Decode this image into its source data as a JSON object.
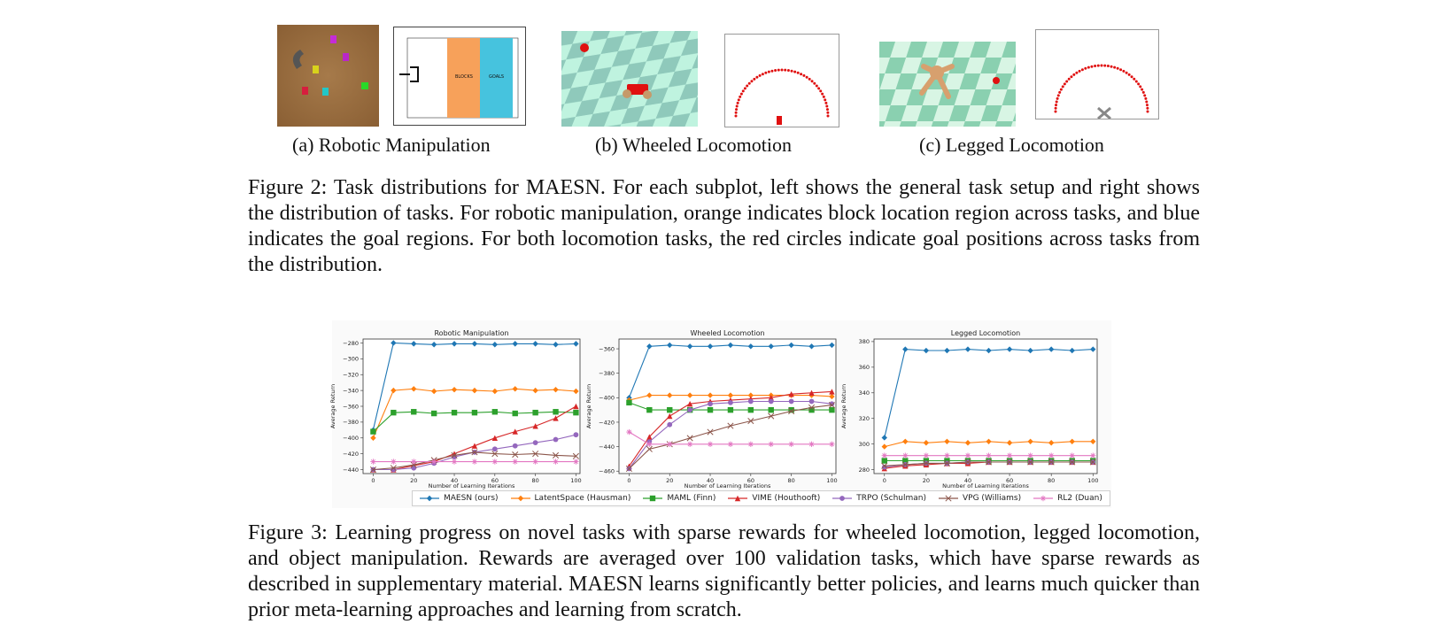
{
  "figure2": {
    "panels": [
      {
        "caption": "(a) Robotic Manipulation",
        "zone_labels": [
          "BLOCKS",
          "GOALS"
        ]
      },
      {
        "caption": "(b) Wheeled Locomotion"
      },
      {
        "caption": "(c) Legged Locomotion"
      }
    ],
    "caption": "Figure 2: Task distributions for MAESN. For each subplot, left shows the general task setup and right shows the distribution of tasks. For robotic manipulation, orange indicates block location region across tasks, and blue indicates the goal regions. For both locomotion tasks, the red circles indicate goal positions across tasks from the distribution."
  },
  "figure3": {
    "caption": "Figure 3: Learning progress on novel tasks with sparse rewards for wheeled locomotion, legged locomotion, and object manipulation. Rewards are averaged over 100 validation tasks, which have sparse rewards as described in supplementary material. MAESN learns significantly better policies, and learns much quicker than prior meta-learning approaches and learning from scratch.",
    "legend": [
      {
        "label": "MAESN (ours)",
        "color": "#1f77b4",
        "marker": "diamond"
      },
      {
        "label": "LatentSpace (Hausman)",
        "color": "#ff7f0e",
        "marker": "diamond"
      },
      {
        "label": "MAML (Finn)",
        "color": "#2ca02c",
        "marker": "square"
      },
      {
        "label": "VIME (Houthooft)",
        "color": "#d62728",
        "marker": "triangle"
      },
      {
        "label": "TRPO (Schulman)",
        "color": "#9467bd",
        "marker": "circle"
      },
      {
        "label": "VPG (Williams)",
        "color": "#8c564b",
        "marker": "x"
      },
      {
        "label": "RL2 (Duan)",
        "color": "#e377c2",
        "marker": "star"
      }
    ]
  },
  "chart_data": [
    {
      "type": "line",
      "title": "Robotic Manipulation",
      "xlabel": "Number of Learning Iterations",
      "ylabel": "Average Return",
      "xlim": [
        -5,
        102
      ],
      "ylim": [
        -445,
        -275
      ],
      "xticks": [
        0,
        20,
        40,
        60,
        80,
        100
      ],
      "yticks": [
        -280,
        -300,
        -320,
        -340,
        -360,
        -380,
        -400,
        -420,
        -440
      ],
      "x": [
        0,
        10,
        20,
        30,
        40,
        50,
        60,
        70,
        80,
        90,
        100
      ],
      "series": [
        {
          "name": "MAESN (ours)",
          "values": [
            -390,
            -280,
            -281,
            -282,
            -281,
            -281,
            -282,
            -281,
            -281,
            -282,
            -281
          ]
        },
        {
          "name": "LatentSpace (Hausman)",
          "values": [
            -400,
            -340,
            -338,
            -341,
            -339,
            -340,
            -341,
            -338,
            -340,
            -339,
            -341
          ]
        },
        {
          "name": "MAML (Finn)",
          "values": [
            -392,
            -368,
            -367,
            -369,
            -368,
            -368,
            -367,
            -369,
            -368,
            -367,
            -368
          ]
        },
        {
          "name": "VIME (Houthooft)",
          "values": [
            -440,
            -440,
            -435,
            -430,
            -420,
            -410,
            -400,
            -392,
            -385,
            -375,
            -360
          ]
        },
        {
          "name": "TRPO (Schulman)",
          "values": [
            -440,
            -440,
            -438,
            -432,
            -424,
            -418,
            -414,
            -410,
            -406,
            -402,
            -396
          ]
        },
        {
          "name": "VPG (Williams)",
          "values": [
            -440,
            -438,
            -434,
            -428,
            -422,
            -418,
            -420,
            -421,
            -420,
            -422,
            -423
          ]
        },
        {
          "name": "RL2 (Duan)",
          "values": [
            -430,
            -430,
            -430,
            -430,
            -430,
            -430,
            -430,
            -430,
            -430,
            -430,
            -430
          ]
        }
      ]
    },
    {
      "type": "line",
      "title": "Wheeled Locomotion",
      "xlabel": "Number of Learning Iterations",
      "ylabel": "Average Return",
      "xlim": [
        -5,
        102
      ],
      "ylim": [
        -462,
        -352
      ],
      "xticks": [
        0,
        20,
        40,
        60,
        80,
        100
      ],
      "yticks": [
        -360,
        -380,
        -400,
        -420,
        -440,
        -460
      ],
      "x": [
        0,
        10,
        20,
        30,
        40,
        50,
        60,
        70,
        80,
        90,
        100
      ],
      "series": [
        {
          "name": "MAESN (ours)",
          "values": [
            -400,
            -358,
            -357,
            -358,
            -358,
            -357,
            -358,
            -358,
            -357,
            -358,
            -357
          ]
        },
        {
          "name": "LatentSpace (Hausman)",
          "values": [
            -402,
            -398,
            -398,
            -398,
            -398,
            -398,
            -398,
            -398,
            -398,
            -398,
            -399
          ]
        },
        {
          "name": "MAML (Finn)",
          "values": [
            -404,
            -410,
            -410,
            -410,
            -410,
            -410,
            -410,
            -410,
            -410,
            -410,
            -410
          ]
        },
        {
          "name": "VIME (Houthooft)",
          "values": [
            -456,
            -432,
            -415,
            -405,
            -403,
            -402,
            -401,
            -400,
            -397,
            -396,
            -395
          ]
        },
        {
          "name": "TRPO (Schulman)",
          "values": [
            -458,
            -436,
            -422,
            -410,
            -405,
            -404,
            -403,
            -403,
            -403,
            -403,
            -405
          ]
        },
        {
          "name": "VPG (Williams)",
          "values": [
            -458,
            -442,
            -438,
            -433,
            -428,
            -423,
            -419,
            -415,
            -411,
            -408,
            -406
          ]
        },
        {
          "name": "RL2 (Duan)",
          "values": [
            -428,
            -438,
            -438,
            -438,
            -438,
            -438,
            -438,
            -438,
            -438,
            -438,
            -438
          ]
        }
      ]
    },
    {
      "type": "line",
      "title": "Legged Locomotion",
      "xlabel": "Number of Learning Iterations",
      "ylabel": "Average Return",
      "xlim": [
        -5,
        102
      ],
      "ylim": [
        277,
        382
      ],
      "xticks": [
        0,
        20,
        40,
        60,
        80,
        100
      ],
      "yticks": [
        380,
        360,
        340,
        320,
        300,
        280
      ],
      "x": [
        0,
        10,
        20,
        30,
        40,
        50,
        60,
        70,
        80,
        90,
        100
      ],
      "series": [
        {
          "name": "MAESN (ours)",
          "values": [
            305,
            374,
            373,
            373,
            374,
            373,
            374,
            373,
            374,
            373,
            374
          ]
        },
        {
          "name": "LatentSpace (Hausman)",
          "values": [
            298,
            302,
            301,
            302,
            301,
            302,
            301,
            302,
            301,
            302,
            302
          ]
        },
        {
          "name": "MAML (Finn)",
          "values": [
            287,
            287,
            287,
            287,
            287,
            287,
            287,
            287,
            287,
            287,
            287
          ]
        },
        {
          "name": "VIME (Houthooft)",
          "values": [
            281,
            283,
            284,
            285,
            285,
            286,
            286,
            286,
            286,
            286,
            286
          ]
        },
        {
          "name": "TRPO (Schulman)",
          "values": [
            282,
            284,
            285,
            285,
            286,
            286,
            286,
            286,
            286,
            286,
            286
          ]
        },
        {
          "name": "VPG (Williams)",
          "values": [
            283,
            284,
            285,
            285,
            286,
            286,
            286,
            286,
            286,
            286,
            286
          ]
        },
        {
          "name": "RL2 (Duan)",
          "values": [
            291,
            291,
            291,
            291,
            291,
            291,
            291,
            291,
            291,
            291,
            291
          ]
        }
      ]
    }
  ]
}
